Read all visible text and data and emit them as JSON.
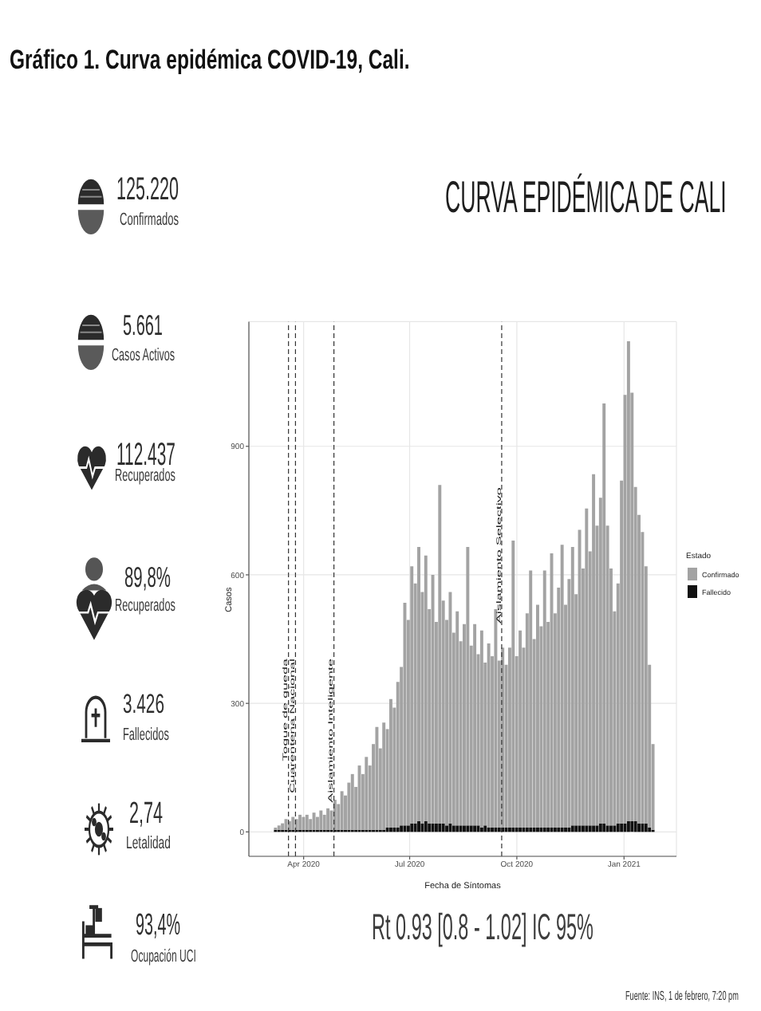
{
  "chart_data": [
    {
      "type": "other",
      "title": "Gráfico 1. Curva epidémica COVID-19, Cali.",
      "annotations": [
        "125.220",
        "Confirmados",
        "5.661",
        "Casos Activos",
        "112.437",
        "Recuperados",
        "89,8%",
        "Recuperados",
        "3.426",
        "Fallecidos",
        "2,74",
        "Letalidad",
        "93,4%",
        "Ocupación UCI"
      ]
    },
    {
      "type": "bar",
      "title": "CURVA EPIDÉMICA DE CALI",
      "xlabel": "Fecha de Síntomas",
      "ylabel": "Casos",
      "legend_title": "Estado",
      "x": [
        "2020-03-08",
        "2020-03-11",
        "2020-03-14",
        "2020-03-17",
        "2020-03-20",
        "2020-03-23",
        "2020-03-26",
        "2020-03-29",
        "2020-04-01",
        "2020-04-04",
        "2020-04-07",
        "2020-04-10",
        "2020-04-13",
        "2020-04-16",
        "2020-04-19",
        "2020-04-22",
        "2020-04-25",
        "2020-04-28",
        "2020-05-01",
        "2020-05-04",
        "2020-05-07",
        "2020-05-10",
        "2020-05-13",
        "2020-05-16",
        "2020-05-19",
        "2020-05-22",
        "2020-05-25",
        "2020-05-28",
        "2020-05-31",
        "2020-06-03",
        "2020-06-06",
        "2020-06-09",
        "2020-06-12",
        "2020-06-15",
        "2020-06-18",
        "2020-06-21",
        "2020-06-24",
        "2020-06-27",
        "2020-06-30",
        "2020-07-03",
        "2020-07-06",
        "2020-07-09",
        "2020-07-12",
        "2020-07-15",
        "2020-07-18",
        "2020-07-21",
        "2020-07-24",
        "2020-07-27",
        "2020-07-30",
        "2020-08-02",
        "2020-08-05",
        "2020-08-08",
        "2020-08-11",
        "2020-08-14",
        "2020-08-17",
        "2020-08-20",
        "2020-08-23",
        "2020-08-26",
        "2020-08-29",
        "2020-09-01",
        "2020-09-04",
        "2020-09-07",
        "2020-09-10",
        "2020-09-13",
        "2020-09-16",
        "2020-09-19",
        "2020-09-22",
        "2020-09-25",
        "2020-09-28",
        "2020-10-01",
        "2020-10-04",
        "2020-10-07",
        "2020-10-10",
        "2020-10-13",
        "2020-10-16",
        "2020-10-19",
        "2020-10-22",
        "2020-10-25",
        "2020-10-28",
        "2020-10-31",
        "2020-11-03",
        "2020-11-06",
        "2020-11-09",
        "2020-11-12",
        "2020-11-15",
        "2020-11-18",
        "2020-11-21",
        "2020-11-24",
        "2020-11-27",
        "2020-11-30",
        "2020-12-03",
        "2020-12-06",
        "2020-12-09",
        "2020-12-12",
        "2020-12-15",
        "2020-12-18",
        "2020-12-21",
        "2020-12-24",
        "2020-12-27",
        "2020-12-30",
        "2021-01-02",
        "2021-01-05",
        "2021-01-08",
        "2021-01-11",
        "2021-01-14",
        "2021-01-17",
        "2021-01-20",
        "2021-01-23",
        "2021-01-26"
      ],
      "series": [
        {
          "name": "Fallecido",
          "color": "#111111",
          "values": [
            5,
            5,
            5,
            5,
            5,
            5,
            5,
            5,
            5,
            5,
            5,
            5,
            5,
            5,
            5,
            5,
            5,
            5,
            5,
            5,
            5,
            5,
            5,
            5,
            5,
            5,
            5,
            5,
            5,
            5,
            5,
            5,
            10,
            10,
            10,
            10,
            15,
            15,
            15,
            20,
            20,
            25,
            20,
            25,
            20,
            20,
            20,
            20,
            20,
            15,
            20,
            15,
            15,
            15,
            15,
            15,
            15,
            15,
            15,
            10,
            15,
            10,
            10,
            10,
            10,
            10,
            10,
            10,
            10,
            10,
            10,
            10,
            10,
            10,
            10,
            10,
            10,
            10,
            10,
            10,
            10,
            10,
            10,
            10,
            10,
            15,
            15,
            15,
            15,
            15,
            15,
            15,
            15,
            20,
            20,
            15,
            15,
            15,
            20,
            20,
            20,
            25,
            25,
            25,
            20,
            20,
            20,
            10,
            5
          ]
        },
        {
          "name": "Confirmado",
          "color": "#a3a3a3",
          "values": [
            5,
            10,
            15,
            25,
            20,
            30,
            25,
            35,
            30,
            35,
            25,
            40,
            30,
            45,
            35,
            50,
            45,
            70,
            60,
            90,
            80,
            110,
            130,
            100,
            150,
            130,
            170,
            150,
            200,
            240,
            190,
            250,
            230,
            300,
            280,
            340,
            370,
            520,
            480,
            600,
            560,
            640,
            540,
            620,
            500,
            580,
            470,
            790,
            520,
            480,
            540,
            450,
            500,
            430,
            470,
            650,
            420,
            470,
            400,
            460,
            380,
            430,
            400,
            510,
            390,
            420,
            380,
            420,
            670,
            400,
            460,
            420,
            500,
            600,
            440,
            520,
            470,
            600,
            480,
            640,
            500,
            560,
            660,
            520,
            580,
            650,
            540,
            690,
            600,
            740,
            640,
            820,
            700,
            760,
            980,
            700,
            600,
            500,
            560,
            800,
            1000,
            1120,
            1000,
            780,
            720,
            680,
            600,
            380,
            200
          ]
        }
      ],
      "stacked": true,
      "xlim": [
        "2020-02-14",
        "2021-02-15"
      ],
      "xticks": [
        {
          "value": "2020-04-01",
          "label": "Apr 2020"
        },
        {
          "value": "2020-07-01",
          "label": "Jul 2020"
        },
        {
          "value": "2020-10-01",
          "label": "Oct 2020"
        },
        {
          "value": "2021-01-01",
          "label": "Jan 2021"
        }
      ],
      "ylim": [
        -57,
        1191
      ],
      "yticks": [
        0,
        300,
        600,
        900
      ],
      "grid": true,
      "legend": "right",
      "ref_lines": [
        {
          "axis": "x",
          "value": "2020-03-19",
          "label": "Toque de queda",
          "color": "#333333",
          "line_style": "dashed"
        },
        {
          "axis": "x",
          "value": "2020-03-25",
          "label": "Cuarentena Nacional",
          "color": "#333333",
          "line_style": "dashed"
        },
        {
          "axis": "x",
          "value": "2020-04-27",
          "label": "Aislamiento Inteligente",
          "color": "#333333",
          "line_style": "dashed"
        },
        {
          "axis": "x",
          "value": "2020-09-18",
          "label": "Aislamiento Selectivo",
          "color": "#333333",
          "line_style": "dashed"
        }
      ],
      "annotations": [
        "Rt 0.93 [0.8 - 1.02] IC 95%",
        "Fuente: INS, 1 de febrero, 7:20 pm"
      ]
    }
  ]
}
